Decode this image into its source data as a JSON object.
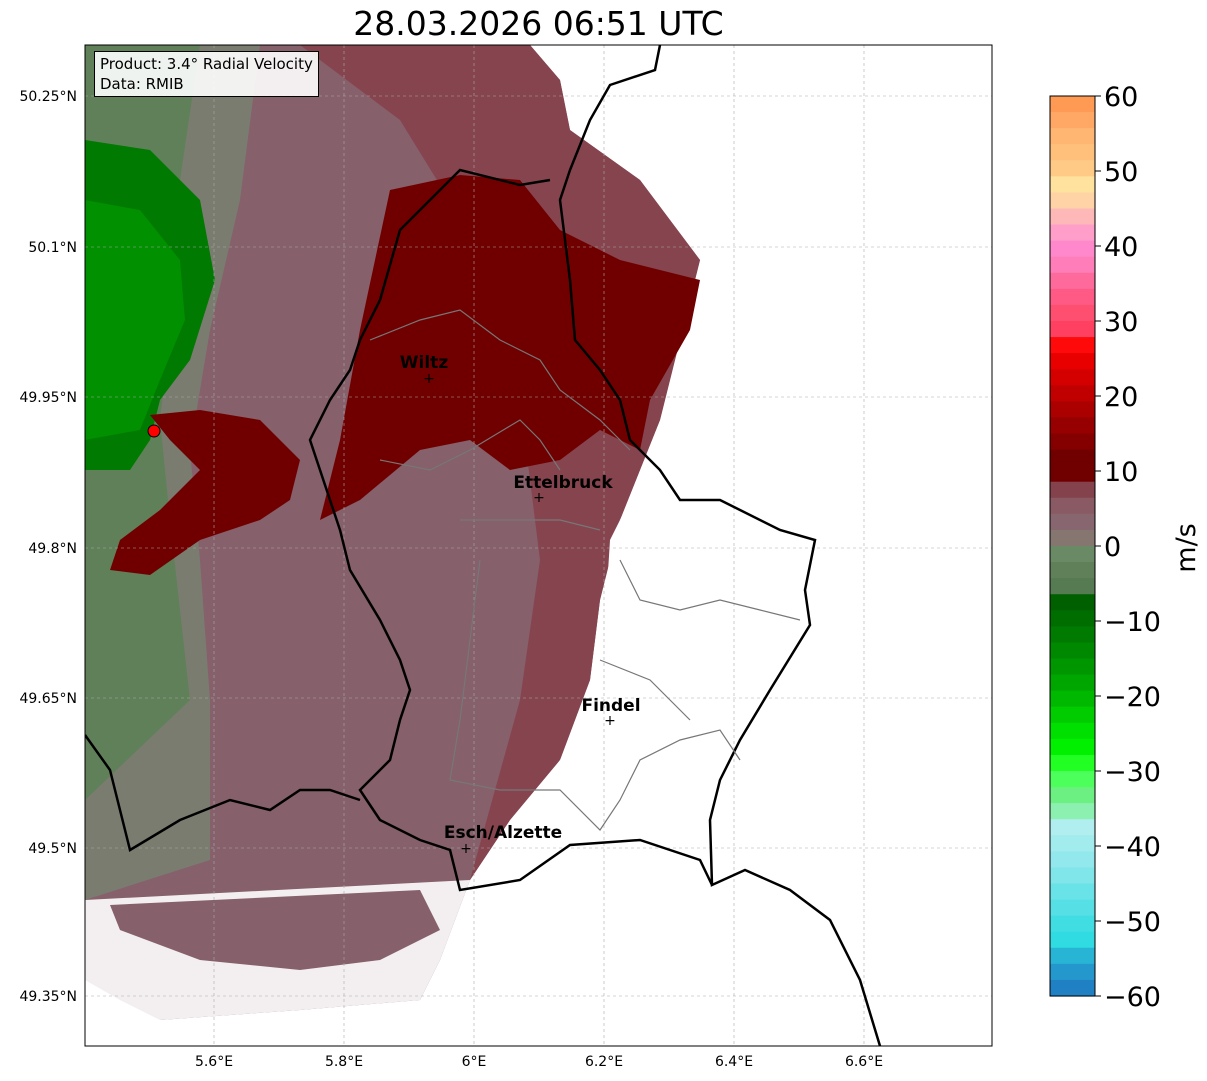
{
  "title": "28.03.2026 06:51 UTC",
  "info_box": {
    "product": "Product: 3.4° Radial Velocity",
    "data": "Data: RMIB"
  },
  "axes": {
    "lon_ticks": [
      "5.6°E",
      "5.8°E",
      "6°E",
      "6.2°E",
      "6.4°E",
      "6.6°E"
    ],
    "lat_ticks": [
      "50.25°N",
      "50.1°N",
      "49.95°N",
      "49.8°N",
      "49.65°N",
      "49.5°N",
      "49.35°N"
    ]
  },
  "cities": [
    {
      "name": "Wiltz"
    },
    {
      "name": "Ettelbruck"
    },
    {
      "name": "Findel"
    },
    {
      "name": "Esch/Alzette"
    }
  ],
  "colorbar": {
    "label": "m/s",
    "ticks": [
      "60",
      "50",
      "40",
      "30",
      "20",
      "10",
      "0",
      "−10",
      "−20",
      "−30",
      "−40",
      "−50",
      "−60"
    ],
    "range": [
      -60,
      60
    ],
    "colors_top_to_bottom": [
      "#ff9a55",
      "#ffa865",
      "#ffb673",
      "#ffc07c",
      "#ffca86",
      "#ffe29e",
      "#ffd3a6",
      "#ffb8b8",
      "#ff9ec8",
      "#ff88cc",
      "#ff7eb9",
      "#ff6a9c",
      "#ff5a85",
      "#ff4f70",
      "#ff4060",
      "#ff0a0a",
      "#e80000",
      "#d40000",
      "#c00000",
      "#aa0000",
      "#960000",
      "#840000",
      "#700000",
      "#700000",
      "#84434c",
      "#8a5a64",
      "#876670",
      "#867670",
      "#6a8a66",
      "#5f8059",
      "#567a52",
      "#006000",
      "#006d00",
      "#007a00",
      "#008800",
      "#009600",
      "#00a600",
      "#00b800",
      "#00cc00",
      "#00e000",
      "#00f000",
      "#22ff22",
      "#4cff5a",
      "#6cf082",
      "#8cf0b0",
      "#b0eef0",
      "#a2ecee",
      "#92e8ec",
      "#80e6ea",
      "#6ae3e8",
      "#56e0e6",
      "#40dde3",
      "#30dbe2",
      "#28b4d4",
      "#2498cc",
      "#2080c4"
    ]
  },
  "radar_site_color": "#ff0000"
}
